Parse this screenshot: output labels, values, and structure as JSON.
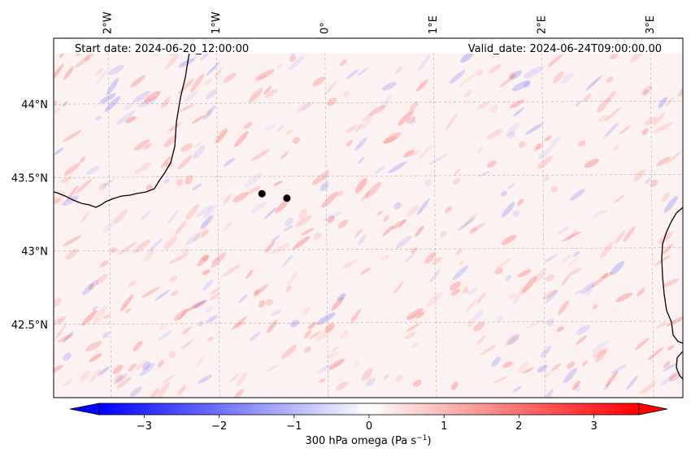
{
  "header": {
    "start_date": "Start date: 2024-06-20_12:00:00",
    "valid_date": "Valid_date: 2024-06-24T09:00:00.00"
  },
  "map": {
    "lon_range": [
      -2.5,
      3.3
    ],
    "lat_range": [
      42.0,
      44.45
    ],
    "lon_ticks": [
      {
        "value": -2,
        "label": "2°W"
      },
      {
        "value": -1,
        "label": "1°W"
      },
      {
        "value": 0,
        "label": "0°"
      },
      {
        "value": 1,
        "label": "1°E"
      },
      {
        "value": 2,
        "label": "2°E"
      },
      {
        "value": 3,
        "label": "3°E"
      }
    ],
    "lat_ticks": [
      {
        "value": 44.0,
        "label": "44°N"
      },
      {
        "value": 43.5,
        "label": "43.5°N"
      },
      {
        "value": 43.0,
        "label": "43°N"
      },
      {
        "value": 42.5,
        "label": "42.5°N"
      }
    ],
    "stations": [
      {
        "lon": -0.58,
        "lat": 43.39
      },
      {
        "lon": -0.35,
        "lat": 43.36
      }
    ],
    "field_variable": "300 hPa omega"
  },
  "colorbar": {
    "label_main": "300 hPa omega (Pa s",
    "label_exp": "−1",
    "label_close": ")",
    "vmin": -3.6,
    "vmax": 3.6,
    "ticks": [
      {
        "value": -3,
        "label": "−3"
      },
      {
        "value": -2,
        "label": "−2"
      },
      {
        "value": -1,
        "label": "−1"
      },
      {
        "value": 0,
        "label": "0"
      },
      {
        "value": 1,
        "label": "1"
      },
      {
        "value": 2,
        "label": "2"
      },
      {
        "value": 3,
        "label": "3"
      }
    ],
    "color_low": "#0000ff",
    "color_mid": "#ffffff",
    "color_high": "#ff0000"
  }
}
